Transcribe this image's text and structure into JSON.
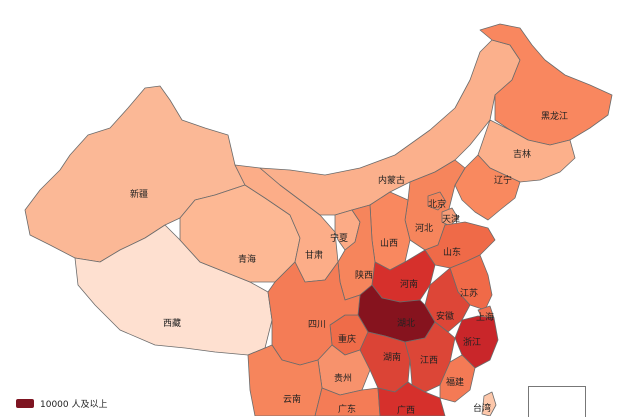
{
  "map": {
    "provinces": [
      {
        "id": "xinjiang",
        "name": "新疆",
        "color": "#fbb896"
      },
      {
        "id": "xizang",
        "name": "西藏",
        "color": "#fee0d0"
      },
      {
        "id": "qinghai",
        "name": "青海",
        "color": "#fdb894"
      },
      {
        "id": "gansu",
        "name": "甘肃",
        "color": "#fcad88"
      },
      {
        "id": "neimenggu",
        "name": "内蒙古",
        "color": "#fbb08c"
      },
      {
        "id": "heilongjiang",
        "name": "黑龙江",
        "color": "#f9875f"
      },
      {
        "id": "jilin",
        "name": "吉林",
        "color": "#fcb08b"
      },
      {
        "id": "liaoning",
        "name": "辽宁",
        "color": "#f9895f"
      },
      {
        "id": "beijing",
        "name": "北京",
        "color": "#f6845a"
      },
      {
        "id": "tianjin",
        "name": "天津",
        "color": "#f69d78"
      },
      {
        "id": "hebei",
        "name": "河北",
        "color": "#f6855c"
      },
      {
        "id": "shanxi",
        "name": "山西",
        "color": "#f9885f"
      },
      {
        "id": "ningxia",
        "name": "宁夏",
        "color": "#fcab86"
      },
      {
        "id": "shaanxi",
        "name": "陕西",
        "color": "#f6855c"
      },
      {
        "id": "shandong",
        "name": "山东",
        "color": "#ef6a48"
      },
      {
        "id": "henan",
        "name": "河南",
        "color": "#d6302c"
      },
      {
        "id": "jiangsu",
        "name": "江苏",
        "color": "#f06a48"
      },
      {
        "id": "anhui",
        "name": "安徽",
        "color": "#dd4637"
      },
      {
        "id": "shanghai",
        "name": "上海",
        "color": "#f07050"
      },
      {
        "id": "hubei",
        "name": "湖北",
        "color": "#86131e"
      },
      {
        "id": "chongqing",
        "name": "重庆",
        "color": "#ef6c49"
      },
      {
        "id": "sichuan",
        "name": "四川",
        "color": "#f47c56"
      },
      {
        "id": "zhejiang",
        "name": "浙江",
        "color": "#c9262a"
      },
      {
        "id": "hunan",
        "name": "湖南",
        "color": "#db4436"
      },
      {
        "id": "jiangxi",
        "name": "江西",
        "color": "#dc4637"
      },
      {
        "id": "guizhou",
        "name": "贵州",
        "color": "#f7926c"
      },
      {
        "id": "yunnan",
        "name": "云南",
        "color": "#f6855c"
      },
      {
        "id": "fujian",
        "name": "福建",
        "color": "#f47a55"
      },
      {
        "id": "guangdong",
        "name": "广东",
        "color": "#d6302c"
      },
      {
        "id": "guangxi",
        "name": "广西",
        "color": "#f47c56"
      },
      {
        "id": "taiwan",
        "name": "台湾",
        "color": "#fdc7aa"
      }
    ]
  },
  "legend": {
    "label": "10000 人及以上",
    "color": "#7e1421"
  }
}
